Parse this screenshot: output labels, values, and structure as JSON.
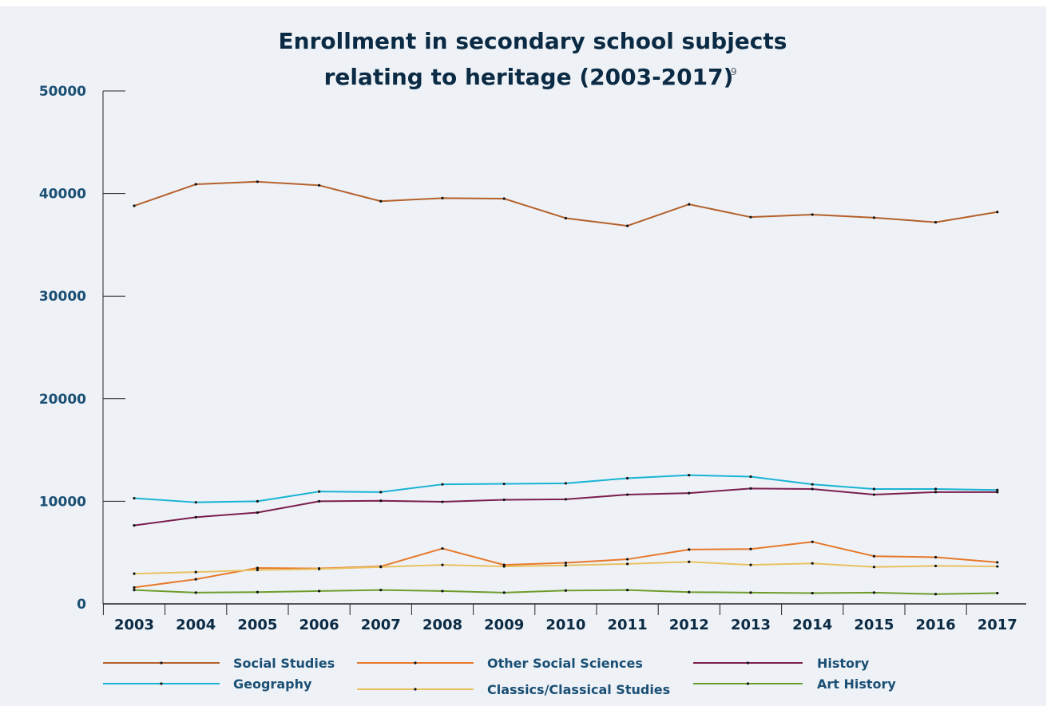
{
  "chart_data": {
    "type": "line",
    "title_line1": "Enrollment in secondary school subjects",
    "title_line2": "relating to heritage (2003-2017)",
    "title_superscript": "9",
    "xlabel": "",
    "ylabel": "",
    "ylim": [
      0,
      50000
    ],
    "yticks": [
      "0",
      "10000",
      "20000",
      "30000",
      "40000",
      "50000"
    ],
    "categories": [
      "2003",
      "2004",
      "2005",
      "2006",
      "2007",
      "2008",
      "2009",
      "2010",
      "2011",
      "2012",
      "2013",
      "2014",
      "2015",
      "2016",
      "2017"
    ],
    "grid": false,
    "legend_position": "bottom",
    "series": [
      {
        "name": "Social Studies",
        "color": "#b5602a",
        "values": [
          38800,
          40900,
          41150,
          40800,
          39250,
          39550,
          39500,
          37600,
          36850,
          38950,
          37700,
          37950,
          37650,
          37200,
          38200
        ]
      },
      {
        "name": "Other Social Sciences",
        "color": "#e8782a",
        "values": [
          1600,
          2400,
          3500,
          3450,
          3650,
          5400,
          3800,
          4000,
          4350,
          5300,
          5350,
          6050,
          4650,
          4550,
          4050
        ]
      },
      {
        "name": "History",
        "color": "#7b1e4e",
        "values": [
          7650,
          8450,
          8900,
          10000,
          10050,
          9950,
          10150,
          10200,
          10650,
          10800,
          11250,
          11200,
          10650,
          10900,
          10900
        ]
      },
      {
        "name": "Geography",
        "color": "#19b3d3",
        "values": [
          10300,
          9900,
          10000,
          10950,
          10900,
          11650,
          11700,
          11750,
          12250,
          12550,
          12400,
          11650,
          11200,
          11200,
          11100
        ]
      },
      {
        "name": "Classics/Classical Studies",
        "color": "#e8c160",
        "values": [
          2950,
          3100,
          3300,
          3400,
          3600,
          3800,
          3650,
          3750,
          3900,
          4100,
          3800,
          3950,
          3600,
          3700,
          3650
        ]
      },
      {
        "name": "Art History",
        "color": "#6e9c2c",
        "values": [
          1350,
          1100,
          1150,
          1250,
          1350,
          1250,
          1100,
          1300,
          1350,
          1150,
          1100,
          1050,
          1100,
          950,
          1050
        ]
      }
    ]
  }
}
